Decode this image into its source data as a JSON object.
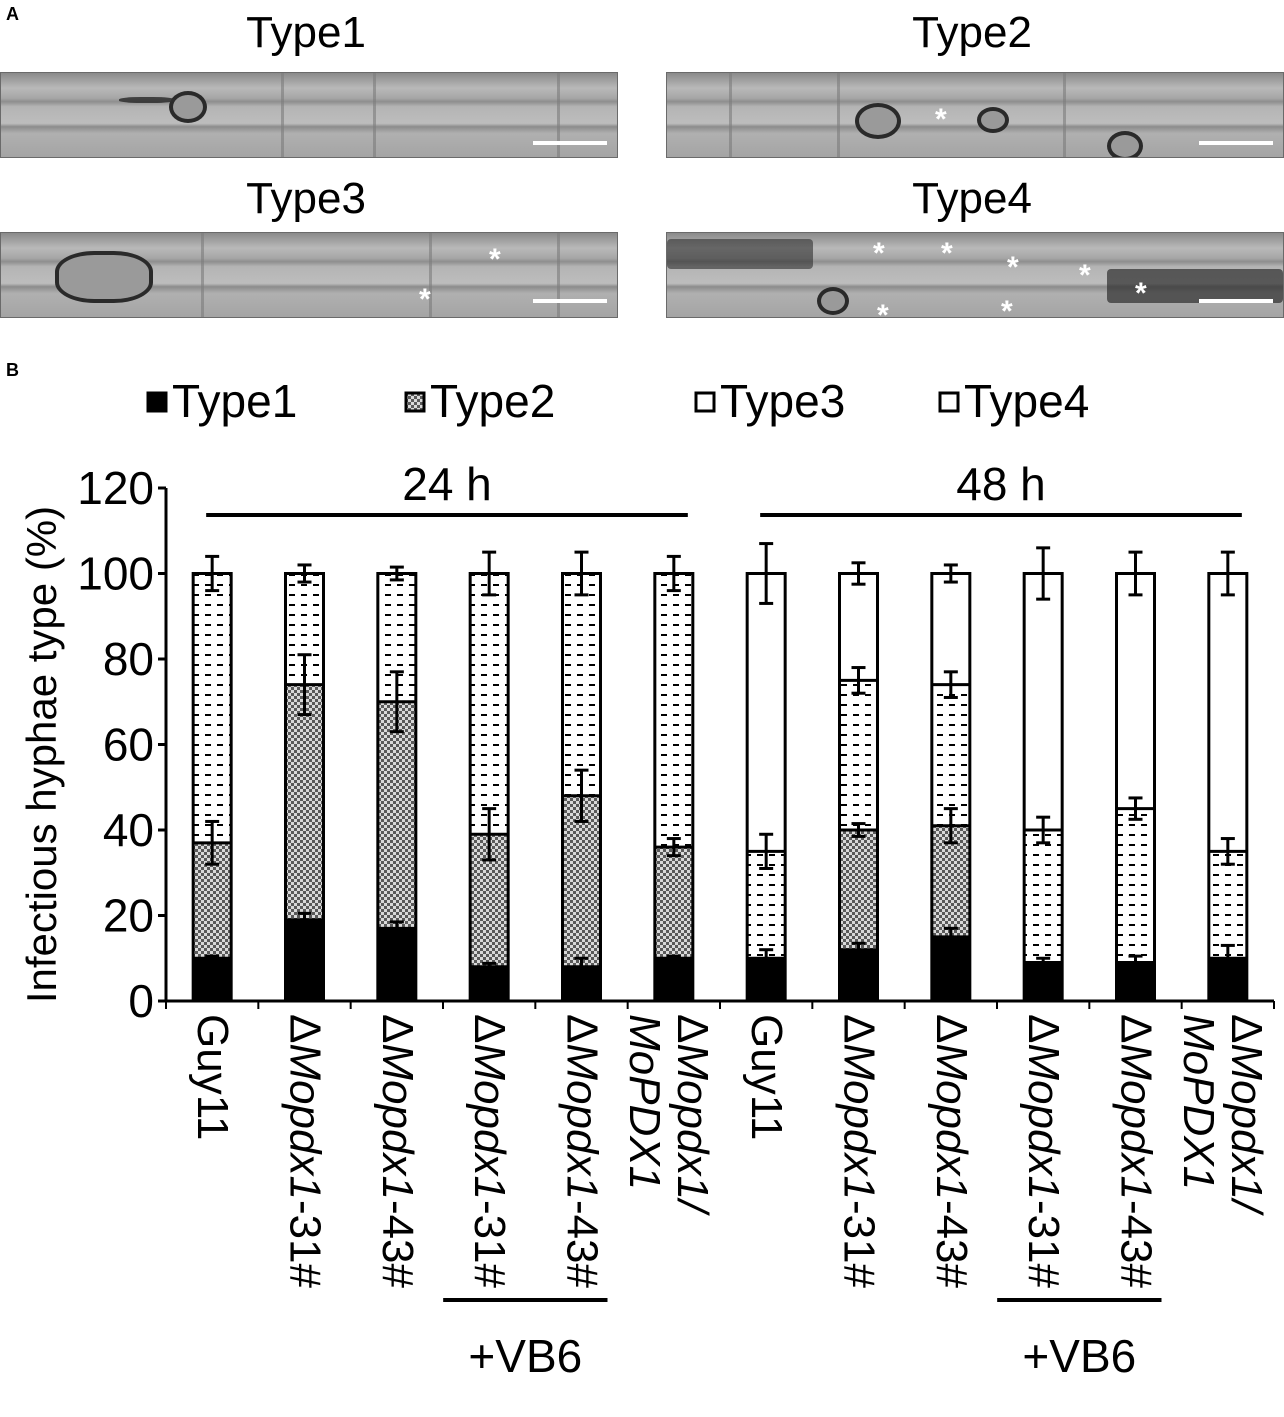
{
  "panel_a": {
    "letter": "A",
    "images": [
      {
        "title": "Type1",
        "asterisk_count": 0
      },
      {
        "title": "Type2",
        "asterisk_count": 1
      },
      {
        "title": "Type3",
        "asterisk_count": 2
      },
      {
        "title": "Type4",
        "asterisk_count": 7
      }
    ],
    "asterisk_glyph": "*"
  },
  "panel_b": {
    "letter": "B"
  },
  "chart_data": {
    "type": "bar",
    "stacked": true,
    "ylabel": "Infectious hyphae type (%)",
    "ylim": [
      0,
      120
    ],
    "yticks": [
      0,
      20,
      40,
      60,
      80,
      100,
      120
    ],
    "legend": {
      "placement": "top",
      "entries": [
        "Type1",
        "Type2",
        "Type3",
        "Type4"
      ]
    },
    "groups": [
      {
        "label": "24 h",
        "from": 0,
        "to": 5
      },
      {
        "label": "48 h",
        "from": 6,
        "to": 11
      }
    ],
    "treatment_brackets": [
      {
        "label": "+VB6",
        "from": 3,
        "to": 4
      },
      {
        "label": "+VB6",
        "from": 9,
        "to": 10
      }
    ],
    "categories": [
      {
        "prefix": "",
        "italic": "",
        "suffix": "Guy11",
        "second_line": ""
      },
      {
        "prefix": "Δ",
        "italic": "Mopdx1",
        "suffix": "-31#",
        "second_line": ""
      },
      {
        "prefix": "Δ",
        "italic": "Mopdx1",
        "suffix": "-43#",
        "second_line": ""
      },
      {
        "prefix": "Δ",
        "italic": "Mopdx1",
        "suffix": "-31#",
        "second_line": ""
      },
      {
        "prefix": "Δ",
        "italic": "Mopdx1",
        "suffix": "-43#",
        "second_line": ""
      },
      {
        "prefix": "Δ",
        "italic": "Mopdx1/",
        "suffix": "",
        "second_line": "MoPDX1"
      },
      {
        "prefix": "",
        "italic": "",
        "suffix": "Guy11",
        "second_line": ""
      },
      {
        "prefix": "Δ",
        "italic": "Mopdx1",
        "suffix": "-31#",
        "second_line": ""
      },
      {
        "prefix": "Δ",
        "italic": "Mopdx1",
        "suffix": "-43#",
        "second_line": ""
      },
      {
        "prefix": "Δ",
        "italic": "Mopdx1",
        "suffix": "-31#",
        "second_line": ""
      },
      {
        "prefix": "Δ",
        "italic": "Mopdx1",
        "suffix": "-43#",
        "second_line": ""
      },
      {
        "prefix": "Δ",
        "italic": "Mopdx1/",
        "suffix": "",
        "second_line": "MoPDX1"
      }
    ],
    "series": [
      {
        "name": "Type1",
        "pattern": "solid-black",
        "values": [
          10,
          19,
          17,
          8,
          8,
          10,
          10,
          12,
          15,
          9,
          9,
          10
        ],
        "errors": [
          0.5,
          1.5,
          1.5,
          0.8,
          2,
          0.5,
          2,
          1.5,
          2,
          1,
          1.5,
          3
        ]
      },
      {
        "name": "Type2",
        "pattern": "checker-gray",
        "values": [
          27,
          55,
          53,
          31,
          40,
          26,
          0,
          28,
          26,
          0,
          0,
          0
        ],
        "errors": [
          5,
          7,
          7,
          6,
          6,
          2,
          0,
          1.5,
          4,
          0,
          0,
          0
        ]
      },
      {
        "name": "Type3",
        "pattern": "white-dashes",
        "values": [
          63,
          26,
          30,
          61,
          52,
          64,
          25,
          35,
          33,
          31,
          36,
          25
        ],
        "errors": [
          4,
          2,
          1.5,
          5,
          5,
          4,
          4,
          3,
          3,
          3,
          2.5,
          3
        ]
      },
      {
        "name": "Type4",
        "pattern": "white",
        "values": [
          0,
          0,
          0,
          0,
          0,
          0,
          65,
          25,
          26,
          60,
          55,
          65
        ],
        "errors": [
          0,
          0,
          0,
          0,
          0,
          0,
          7,
          2.5,
          2,
          6,
          5,
          5
        ]
      }
    ]
  }
}
